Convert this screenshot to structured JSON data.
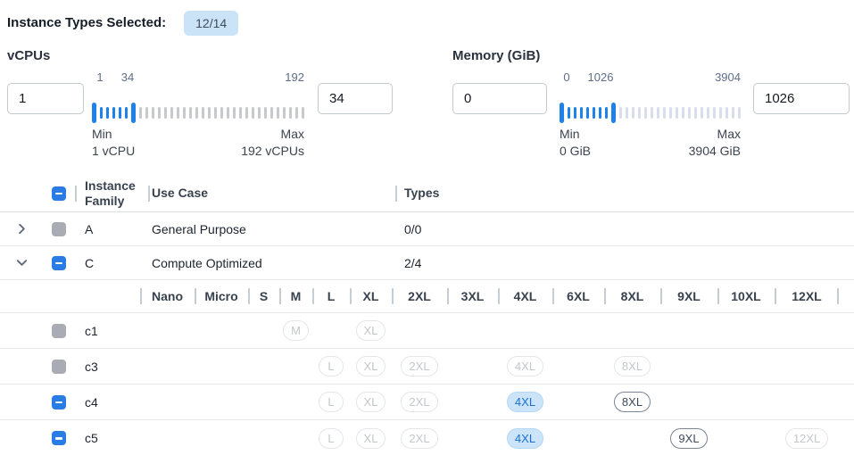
{
  "selection_summary": {
    "label": "Instance Types Selected:",
    "count_badge": "12/14"
  },
  "filters": {
    "vcpus": {
      "title": "vCPUs",
      "min_input": "1",
      "max_input": "34",
      "scale_labels": [
        "1",
        "34",
        "192"
      ],
      "min_label": "Min",
      "min_value": "1 vCPU",
      "max_label": "Max",
      "max_value": "192 vCPUs"
    },
    "memory": {
      "title": "Memory (GiB)",
      "min_input": "0",
      "max_input": "1026",
      "scale_labels": [
        "0",
        "1026",
        "3904"
      ],
      "min_label": "Min",
      "min_value": "0 GiB",
      "max_label": "Max",
      "max_value": "3904 GiB"
    }
  },
  "table": {
    "columns": {
      "family": "Instance Family",
      "use_case": "Use Case",
      "types": "Types"
    },
    "select_all_state": "indeterminate",
    "family_rows": [
      {
        "family": "A",
        "use_case": "General Purpose",
        "types": "0/0",
        "expanded": false,
        "checkbox_state": "disabled-filled"
      },
      {
        "family": "C",
        "use_case": "Compute Optimized",
        "types": "2/4",
        "expanded": true,
        "checkbox_state": "indeterminate",
        "size_columns": [
          "Nano",
          "Micro",
          "S",
          "M",
          "L",
          "XL",
          "2XL",
          "3XL",
          "4XL",
          "6XL",
          "8XL",
          "9XL",
          "10XL",
          "12XL"
        ],
        "children": [
          {
            "name": "c1",
            "checkbox_state": "disabled-filled",
            "sizes": {
              "M": "disabled",
              "XL": "disabled"
            }
          },
          {
            "name": "c3",
            "checkbox_state": "disabled-filled",
            "sizes": {
              "L": "disabled",
              "XL": "disabled",
              "2XL": "disabled",
              "4XL": "disabled",
              "8XL": "disabled"
            }
          },
          {
            "name": "c4",
            "checkbox_state": "indeterminate",
            "sizes": {
              "L": "disabled",
              "XL": "disabled",
              "2XL": "disabled",
              "4XL": "selected",
              "8XL": "available"
            }
          },
          {
            "name": "c5",
            "checkbox_state": "indeterminate",
            "sizes": {
              "L": "disabled",
              "XL": "disabled",
              "2XL": "disabled",
              "4XL": "selected",
              "9XL": "available",
              "12XL": "disabled"
            }
          }
        ]
      }
    ]
  },
  "colors": {
    "accent_blue": "#2a7ce5",
    "slider_blue": "#1f82ea",
    "selected_chip_bg": "#cbe4f9",
    "selected_chip_text": "#1a6fd1",
    "disabled_gray": "#a9adb3",
    "summary_badge_bg": "#cbe3f7"
  }
}
